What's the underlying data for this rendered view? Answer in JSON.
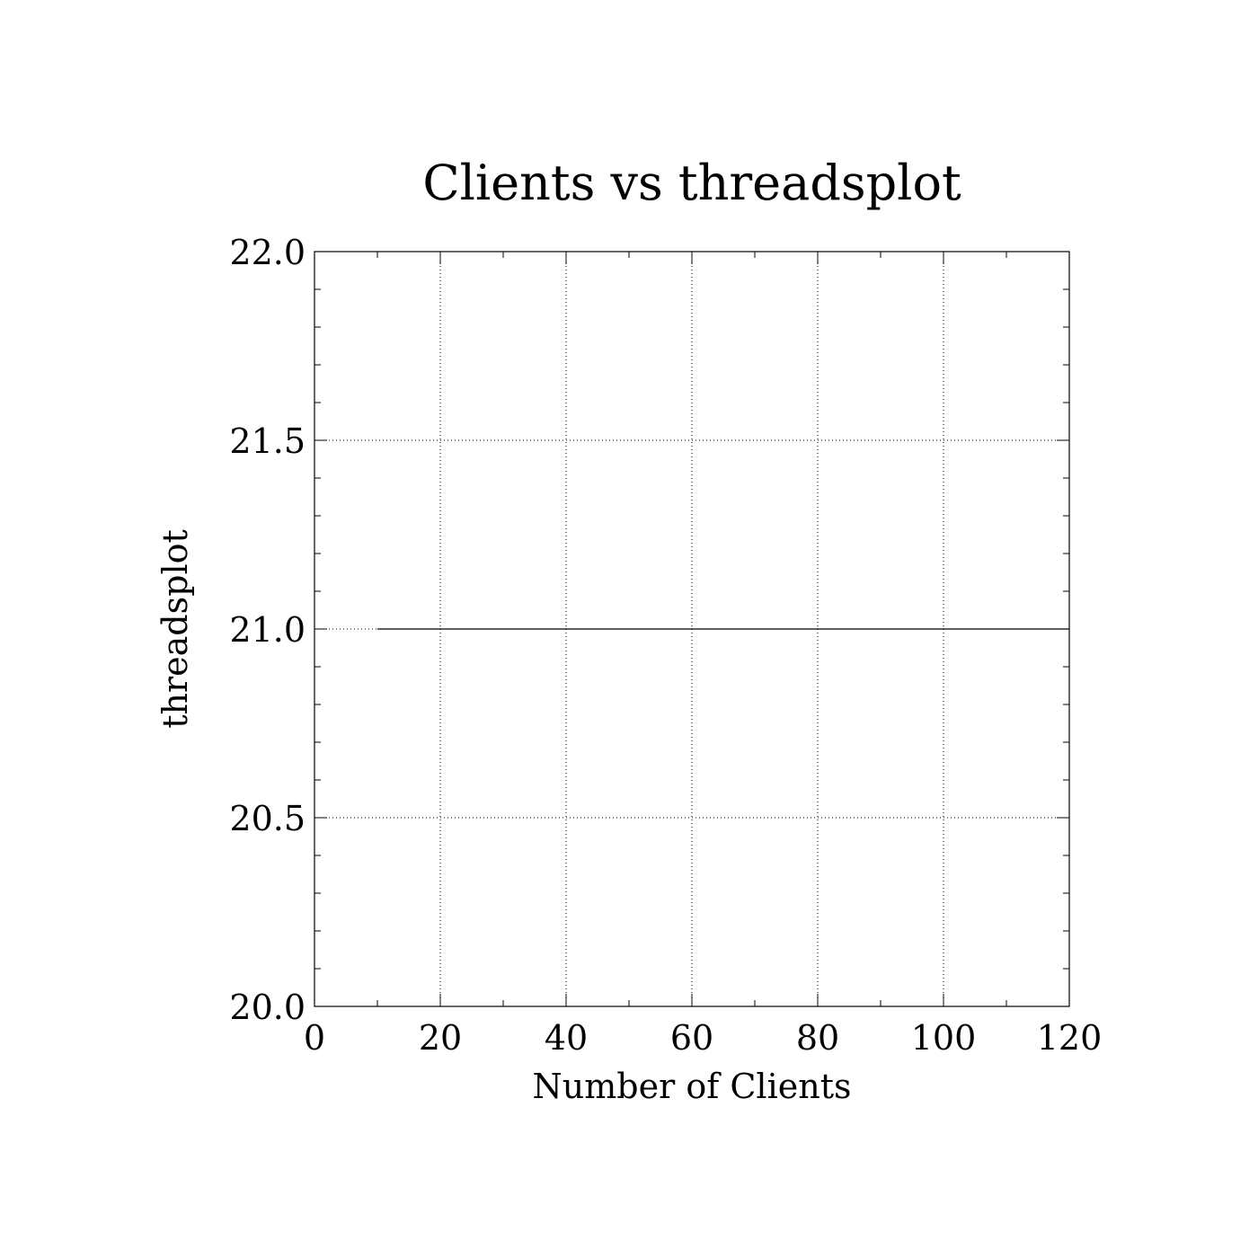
{
  "chart_data": {
    "type": "line",
    "title": "Clients vs threadsplot",
    "xlabel": "Number of Clients",
    "ylabel": "threadsplot",
    "xlim": [
      0,
      120
    ],
    "ylim": [
      20.0,
      22.0
    ],
    "x_ticks": [
      0,
      20,
      40,
      60,
      80,
      100,
      120
    ],
    "x_tick_labels": [
      "0",
      "20",
      "40",
      "60",
      "80",
      "100",
      "120"
    ],
    "y_ticks": [
      20.0,
      20.5,
      21.0,
      21.5,
      22.0
    ],
    "y_tick_labels": [
      "20.0",
      "20.5",
      "21.0",
      "21.5",
      "22.0"
    ],
    "x_minor_step": 10,
    "y_minor_step": 0.1,
    "grid": true,
    "grid_style": "dotted",
    "series": [
      {
        "x": [
          10,
          120
        ],
        "y": [
          21.0,
          21.0
        ],
        "color": "#000000"
      }
    ]
  }
}
